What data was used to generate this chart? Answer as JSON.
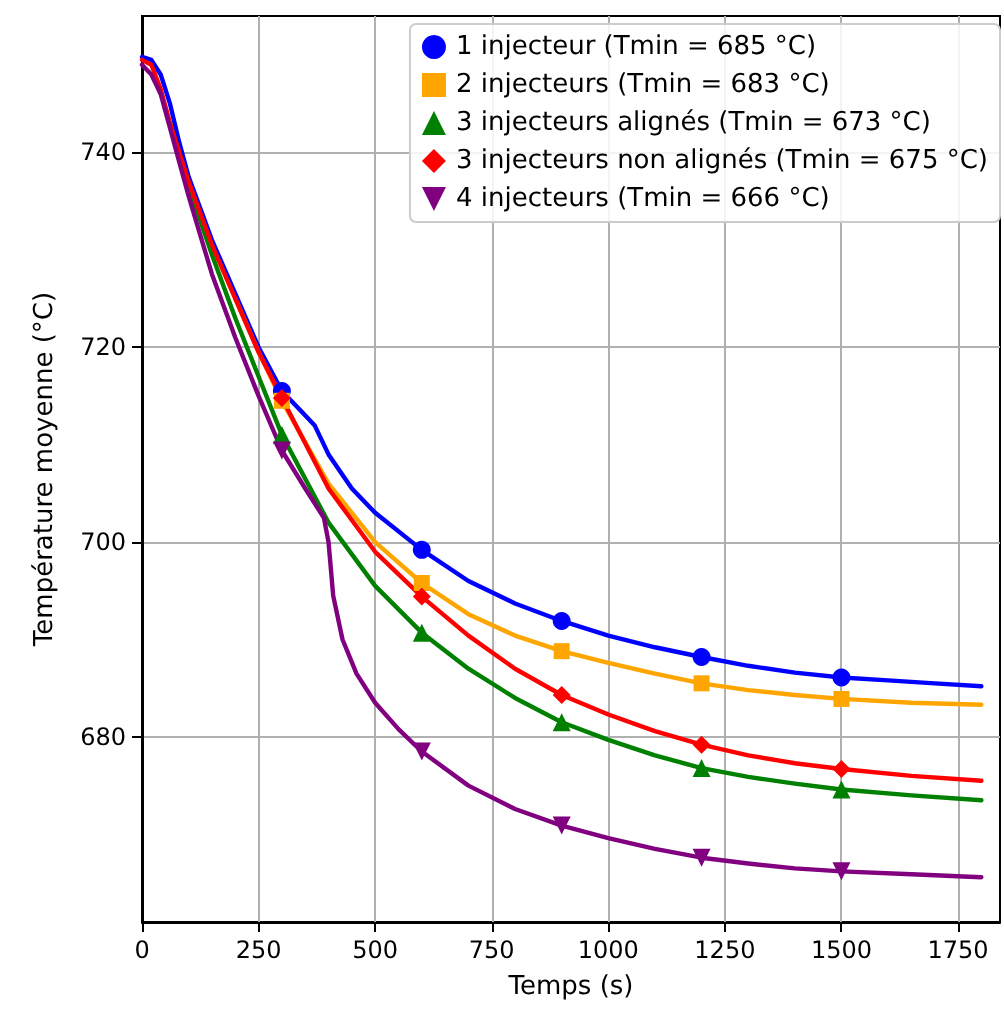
{
  "chart_data": {
    "type": "line",
    "xlabel": "Temps (s)",
    "ylabel": "Température moyenne (°C)",
    "xlim": [
      0,
      1840
    ],
    "xticks": [
      0,
      250,
      500,
      750,
      1000,
      1250,
      1500,
      1750
    ],
    "ylim": [
      661,
      754
    ],
    "yticks": [
      680,
      700,
      720,
      740
    ],
    "grid": true,
    "legend": "top right",
    "line_style": "solid",
    "series": [
      {
        "color": "#0000ff",
        "marker": "none",
        "x": [
          0,
          20,
          40,
          60,
          80,
          100,
          150,
          200,
          250,
          300,
          340,
          370,
          400,
          450,
          500,
          600,
          700,
          800,
          900,
          1000,
          1100,
          1200,
          1300,
          1400,
          1500,
          1600,
          1700,
          1800
        ],
        "values": [
          749.8,
          749.5,
          748,
          745,
          741,
          737.5,
          731,
          725.5,
          720,
          715.5,
          713.5,
          712,
          709,
          705.5,
          703,
          699.2,
          696,
          693.7,
          691.9,
          690.4,
          689.2,
          688.2,
          687.3,
          686.6,
          686.1,
          685.8,
          685.5,
          685.2
        ]
      },
      {
        "color": "#ffa500",
        "marker": "none",
        "x": [
          200,
          250,
          300,
          400,
          500,
          600,
          700,
          800,
          900,
          1000,
          1100,
          1200,
          1300,
          1400,
          1500,
          1650,
          1800
        ],
        "values": [
          725,
          719.5,
          714.5,
          706,
          700,
          695.8,
          692.6,
          690.4,
          688.8,
          687.6,
          686.5,
          685.5,
          684.8,
          684.3,
          683.9,
          683.5,
          683.3
        ]
      },
      {
        "color": "#008000",
        "marker": "none",
        "x": [
          60,
          100,
          150,
          200,
          250,
          300,
          400,
          500,
          600,
          700,
          800,
          900,
          1000,
          1100,
          1200,
          1300,
          1400,
          1500,
          1650,
          1800
        ],
        "values": [
          743,
          736.5,
          729.5,
          723,
          717,
          711,
          702,
          695.5,
          690.7,
          687,
          684,
          681.5,
          679.7,
          678.1,
          676.8,
          675.9,
          675.2,
          674.6,
          674,
          673.5
        ]
      },
      {
        "color": "#ff0000",
        "marker": "none",
        "x": [
          0,
          20,
          40,
          60,
          100,
          150,
          200,
          250,
          300,
          400,
          500,
          600,
          700,
          800,
          900,
          1000,
          1100,
          1200,
          1300,
          1400,
          1500,
          1650,
          1800
        ],
        "values": [
          749.5,
          749,
          746.5,
          743,
          737,
          730.5,
          725,
          719.5,
          714.8,
          705.5,
          699,
          694.4,
          690.4,
          687,
          684.3,
          682.3,
          680.6,
          679.2,
          678.1,
          677.3,
          676.7,
          676,
          675.5
        ]
      },
      {
        "color": "#800080",
        "marker": "none",
        "x": [
          0,
          20,
          40,
          60,
          80,
          100,
          150,
          200,
          250,
          300,
          350,
          390,
          400,
          410,
          430,
          460,
          500,
          550,
          600,
          700,
          800,
          900,
          1000,
          1100,
          1200,
          1300,
          1400,
          1500,
          1650,
          1800
        ],
        "values": [
          749,
          748,
          746,
          742.5,
          739,
          735.5,
          727.5,
          721,
          715,
          709.4,
          705.5,
          702.5,
          700,
          694.5,
          690,
          686.5,
          683.5,
          680.8,
          678.5,
          675,
          672.6,
          670.9,
          669.6,
          668.5,
          667.6,
          667,
          666.5,
          666.2,
          665.9,
          665.6
        ]
      },
      {
        "type": "scatter",
        "name": "1 injecteur (Tmin = 685 °C)",
        "color": "#0000ff",
        "marker": "circle",
        "x": [
          300,
          600,
          900,
          1200,
          1500
        ],
        "values": [
          715.5,
          699.2,
          691.9,
          688.2,
          686.1
        ]
      },
      {
        "type": "scatter",
        "name": "2 injecteurs (Tmin = 683 °C)",
        "color": "#ffa500",
        "marker": "square",
        "x": [
          300,
          600,
          900,
          1200,
          1500
        ],
        "values": [
          714.5,
          695.8,
          688.8,
          685.5,
          683.9
        ]
      },
      {
        "type": "scatter",
        "name": "3 injecteurs alignés (Tmin = 673 °C)",
        "color": "#008000",
        "marker": "triangle",
        "x": [
          300,
          600,
          900,
          1200,
          1500
        ],
        "values": [
          711,
          690.7,
          681.5,
          676.8,
          674.6
        ]
      },
      {
        "type": "scatter",
        "name": "3 injecteurs non alignés (Tmin = 675 °C)",
        "color": "#ff0000",
        "marker": "diamond",
        "x": [
          300,
          600,
          900,
          1200,
          1500
        ],
        "values": [
          714.8,
          694.4,
          684.3,
          679.2,
          676.7
        ]
      },
      {
        "type": "scatter",
        "name": "4 injecteurs (Tmin = 666 °C)",
        "color": "#800080",
        "marker": "triangle-down",
        "x": [
          300,
          600,
          900,
          1200,
          1500
        ],
        "values": [
          709.4,
          678.5,
          670.9,
          667.6,
          666.2
        ]
      }
    ]
  }
}
